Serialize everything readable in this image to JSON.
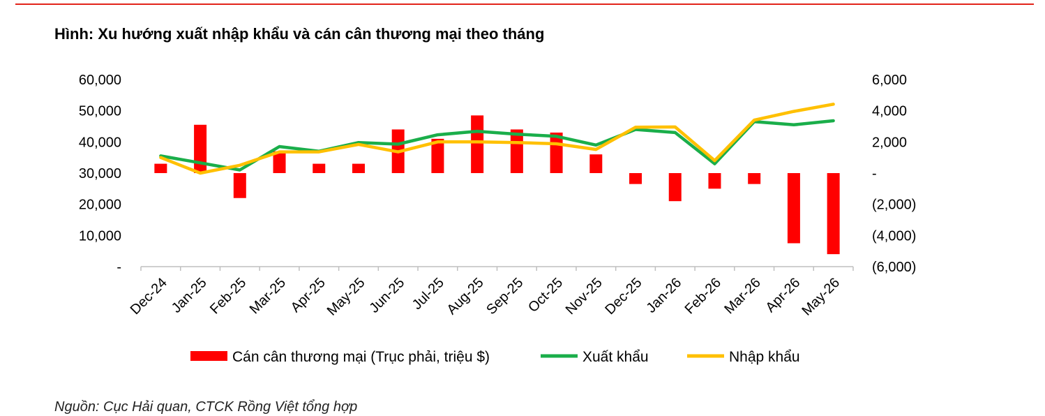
{
  "title": "Hình:  Xu hướng xuất nhập khẩu và cán cân thương mại theo tháng",
  "source": "Nguồn: Cục Hải quan, CTCK Rồng Việt tổng hợp",
  "colors": {
    "balance": "#ff0000",
    "export": "#1aae4a",
    "import": "#ffc000",
    "accent_rule": "#e2231a"
  },
  "chart_data": {
    "type": "bar+line",
    "categories": [
      "Dec-24",
      "Jan-25",
      "Feb-25",
      "Mar-25",
      "Apr-25",
      "May-25",
      "Jun-25",
      "Jul-25",
      "Aug-25",
      "Sep-25",
      "Oct-25",
      "Nov-25",
      "Dec-25",
      "Jan-26",
      "Feb-26",
      "Mar-26",
      "Apr-26",
      "May-26"
    ],
    "left_axis": {
      "ylim": [
        0,
        60000
      ],
      "ticks": [
        0,
        10000,
        20000,
        30000,
        40000,
        50000,
        60000
      ],
      "tick_labels": [
        "-",
        "10,000",
        "20,000",
        "30,000",
        "40,000",
        "50,000",
        "60,000"
      ]
    },
    "right_axis": {
      "ylim": [
        -6000,
        6000
      ],
      "ticks": [
        -6000,
        -4000,
        -2000,
        0,
        2000,
        4000,
        6000
      ],
      "tick_labels": [
        "(6,000)",
        "(4,000)",
        "(2,000)",
        "-",
        "2,000",
        "4,000",
        "6,000"
      ]
    },
    "series": [
      {
        "name": "Cán cân thương mại (Trục phải, triệu $)",
        "type": "bar",
        "axis": "right",
        "values": [
          600,
          3100,
          -1600,
          1400,
          600,
          600,
          2800,
          2200,
          3700,
          2800,
          2600,
          1200,
          -700,
          -1800,
          -1000,
          -700,
          -4500,
          -5200
        ]
      },
      {
        "name": "Xuất khẩu",
        "type": "line",
        "axis": "left",
        "values": [
          35500,
          33300,
          31000,
          38500,
          37000,
          39800,
          39300,
          42300,
          43400,
          42500,
          41800,
          39000,
          44000,
          43000,
          33000,
          46500,
          45500,
          46800
        ]
      },
      {
        "name": "Nhập khẩu",
        "type": "line",
        "axis": "left",
        "values": [
          35000,
          30000,
          32500,
          36800,
          36800,
          39200,
          36800,
          40000,
          40000,
          39800,
          39400,
          37600,
          44700,
          44800,
          34000,
          47000,
          49800,
          52100
        ]
      }
    ],
    "legend": "bottom",
    "grid": false
  }
}
